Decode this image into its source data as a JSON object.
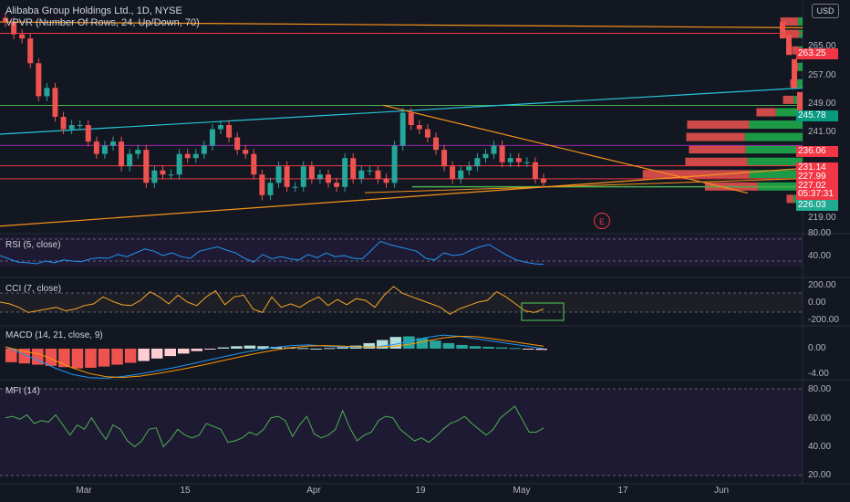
{
  "header": {
    "symbol_title": "Alibaba Group Holdings Ltd., 1D, NYSE",
    "vpvr_label": "VPVR (Number Of Rows, 24, Up/Down, 70)",
    "currency": "USD"
  },
  "price_labels": [
    {
      "text": "263.25",
      "color": "#f23645"
    },
    {
      "text": "245.78",
      "color": "#089981"
    },
    {
      "text": "236.06",
      "color": "#f23645"
    },
    {
      "text": "231.14",
      "color": "#f23645"
    },
    {
      "text": "227.99",
      "color": "#f23645"
    },
    {
      "text": "227.02",
      "color": "#f23645"
    },
    {
      "text": "05:37:31",
      "color": "#f23645"
    },
    {
      "text": "226.03",
      "color": "#22ab94"
    }
  ],
  "price_ticks": [
    "265.00",
    "257.00",
    "249.00",
    "241.00",
    "219.00"
  ],
  "earnings_marker": "E",
  "x_labels": [
    "Mar",
    "15",
    "Apr",
    "19",
    "May",
    "17",
    "Jun"
  ],
  "panes": {
    "rsi": {
      "label": "RSI (5, close)",
      "ticks": [
        "80.00",
        "40.00"
      ]
    },
    "cci": {
      "label": "CCI (7, close)",
      "ticks": [
        "200.00",
        "0.00",
        "-200.00"
      ]
    },
    "macd": {
      "label": "MACD (14, 21, close, 9)",
      "ticks": [
        "0.00",
        "-4.00"
      ]
    },
    "mfi": {
      "label": "MFI (14)",
      "ticks": [
        "80.00",
        "60.00",
        "40.00",
        "20.00"
      ]
    }
  },
  "colors": {
    "up": "#26a69a",
    "down": "#ef5350",
    "background": "#131722",
    "rsi_line": "#2196f3",
    "cci_line": "#f5a623",
    "mfi_line": "#4caf50",
    "trend_orange": "#f7931a",
    "trend_teal": "#26c6da"
  },
  "chart_data": {
    "type": "candlestick",
    "title": "Alibaba Group Holdings Ltd., 1D, NYSE",
    "ylim": [
      216,
      270
    ],
    "x_range": [
      "Feb",
      "Jun"
    ],
    "horizontal_levels": [
      263.25,
      245.78,
      236.06,
      231.14,
      227.99,
      227.02,
      226.03
    ],
    "closes": [
      266,
      263,
      262,
      256,
      248,
      250,
      243,
      240,
      241,
      241,
      237,
      234,
      236,
      237,
      231,
      234,
      235,
      227,
      230,
      229,
      229,
      234,
      233,
      234,
      236,
      240,
      241,
      238,
      235,
      234,
      229,
      224,
      227,
      231,
      226,
      226,
      231,
      228,
      229,
      227,
      226,
      233,
      228,
      230,
      230,
      228,
      227,
      236,
      244,
      241,
      240,
      238,
      235,
      231,
      228,
      230,
      231,
      233,
      234,
      236,
      232,
      233,
      232,
      232,
      228,
      227
    ],
    "rsi": [
      50,
      44,
      38,
      37,
      35,
      40,
      37,
      42,
      40,
      39,
      44,
      46,
      45,
      52,
      48,
      55,
      62,
      58,
      50,
      55,
      48,
      45,
      58,
      62,
      66,
      60,
      55,
      45,
      38,
      52,
      44,
      48,
      44,
      42,
      52,
      46,
      55,
      48,
      50,
      45,
      44,
      60,
      76,
      70,
      66,
      62,
      58,
      45,
      42,
      55,
      50,
      52,
      60,
      66,
      70,
      60,
      50,
      42,
      38,
      35,
      34
    ],
    "cci": [
      0,
      -20,
      -60,
      -120,
      -100,
      -80,
      -60,
      -100,
      -80,
      -40,
      -20,
      60,
      10,
      -30,
      -40,
      20,
      120,
      60,
      -20,
      80,
      0,
      -40,
      60,
      130,
      -30,
      60,
      80,
      -80,
      -120,
      60,
      -60,
      -20,
      -60,
      10,
      60,
      -40,
      30,
      -30,
      40,
      20,
      -60,
      80,
      180,
      100,
      60,
      20,
      -20,
      -60,
      -140,
      -80,
      -40,
      0,
      20,
      120,
      60,
      -20,
      -100,
      -120,
      -80
    ],
    "macd_hist": [
      -2.2,
      -2.4,
      -2.6,
      -2.8,
      -3.0,
      -3.2,
      -3.1,
      -2.9,
      -2.6,
      -2.3,
      -2.0,
      -1.6,
      -1.2,
      -0.8,
      -0.4,
      -0.1,
      0.2,
      0.4,
      0.5,
      0.4,
      0.3,
      0.2,
      0.1,
      0.0,
      0.1,
      0.2,
      0.5,
      0.9,
      1.4,
      1.9,
      2.0,
      1.7,
      1.3,
      0.9,
      0.6,
      0.4,
      0.3,
      0.2,
      0.1,
      -0.1,
      -0.2
    ],
    "macd_line": [
      0.3,
      -0.8,
      -2.0,
      -3.2,
      -4.2,
      -4.7,
      -4.8,
      -4.5,
      -4.1,
      -3.6,
      -3.1,
      -2.5,
      -1.9,
      -1.3,
      -0.7,
      -0.2,
      0.2,
      0.5,
      0.6,
      0.4,
      0.3,
      0.2,
      0.3,
      0.6,
      1.2,
      1.8,
      2.2,
      2.0,
      1.6,
      1.2,
      0.8,
      0.4,
      0.0
    ],
    "mfi": [
      60,
      61,
      59,
      62,
      56,
      58,
      57,
      62,
      55,
      48,
      55,
      52,
      60,
      52,
      45,
      55,
      52,
      44,
      40,
      44,
      52,
      53,
      40,
      45,
      52,
      48,
      46,
      48,
      56,
      54,
      52,
      43,
      44,
      46,
      50,
      48,
      52,
      60,
      61,
      58,
      47,
      55,
      61,
      49,
      46,
      48,
      52,
      65,
      53,
      44,
      48,
      50,
      58,
      61,
      60,
      52,
      48,
      44,
      46,
      43,
      47,
      52,
      56,
      58,
      61,
      56,
      52,
      48,
      52,
      60,
      64,
      68,
      59,
      50,
      50,
      53
    ],
    "volume_profile": [
      {
        "price": 266,
        "up": 5,
        "down": 20
      },
      {
        "price": 263,
        "up": 4,
        "down": 16
      },
      {
        "price": 259,
        "up": 4,
        "down": 8
      },
      {
        "price": 255,
        "up": 5,
        "down": 6
      },
      {
        "price": 251,
        "up": 6,
        "down": 8
      },
      {
        "price": 247,
        "up": 10,
        "down": 12
      },
      {
        "price": 244,
        "up": 30,
        "down": 22
      },
      {
        "price": 241,
        "up": 60,
        "down": 70
      },
      {
        "price": 238,
        "up": 65,
        "down": 66
      },
      {
        "price": 235,
        "up": 64,
        "down": 64
      },
      {
        "price": 232,
        "up": 62,
        "down": 70
      },
      {
        "price": 229,
        "up": 60,
        "down": 120
      },
      {
        "price": 226,
        "up": 50,
        "down": 60
      },
      {
        "price": 223,
        "up": 10,
        "down": 8
      }
    ]
  }
}
